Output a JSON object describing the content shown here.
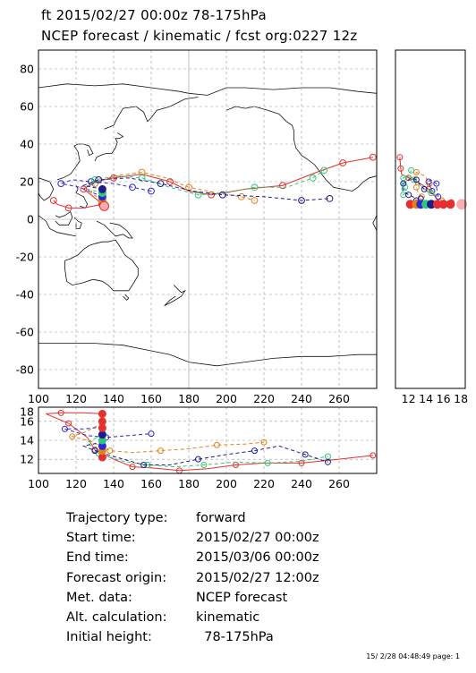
{
  "header": {
    "line1": "ft 2015/02/27 00:00z  78-175hPa",
    "line2": "NCEP forecast / kinematic / fcst org:0227 12z"
  },
  "info": [
    {
      "key": "Trajectory type:",
      "value": "forward"
    },
    {
      "key": "Start time:",
      "value": "2015/02/27 00:00z"
    },
    {
      "key": "End time:",
      "value": "2015/03/06 00:00z"
    },
    {
      "key": "Forecast origin:",
      "value": "2015/02/27 12:00z"
    },
    {
      "key": "Met. data:",
      "value": "NCEP forecast"
    },
    {
      "key": "Alt. calculation:",
      "value": "kinematic"
    },
    {
      "key": "Initial height:",
      "value": "  78-175hPa"
    }
  ],
  "footer": "15/ 2/28 04:48:49 page: 1",
  "colors": {
    "red": "#e53030",
    "orange": "#e8801a",
    "blue": "#2a2ad0",
    "green": "#30c878",
    "navy": "#1c1c8c",
    "grid": "#999999"
  },
  "chart_data": [
    {
      "type": "line",
      "panel": "map",
      "xlim": [
        100,
        280
      ],
      "ylim": [
        -90,
        90
      ],
      "xticks": [
        100,
        120,
        140,
        160,
        180,
        200,
        220,
        240,
        260
      ],
      "yticks": [
        80,
        60,
        40,
        20,
        0,
        -20,
        -40,
        -60,
        -80
      ],
      "grid": true,
      "series": [
        {
          "color": "red",
          "dash": false,
          "points": [
            [
              134,
              8
            ],
            [
              128,
              13
            ],
            [
              124,
              16
            ],
            [
              130,
              20
            ],
            [
              140,
              22
            ],
            [
              155,
              24
            ],
            [
              170,
              20
            ],
            [
              180,
              15
            ],
            [
              192,
              13
            ],
            [
              210,
              16
            ],
            [
              230,
              18
            ],
            [
              248,
              25
            ],
            [
              262,
              30
            ],
            [
              278,
              33
            ]
          ]
        },
        {
          "color": "orange",
          "dash": true,
          "points": [
            [
              134,
              10
            ],
            [
              128,
              14
            ],
            [
              130,
              19
            ],
            [
              140,
              23
            ],
            [
              155,
              25
            ],
            [
              168,
              22
            ],
            [
              180,
              17
            ],
            [
              195,
              14
            ],
            [
              208,
              12
            ],
            [
              215,
              10
            ]
          ]
        },
        {
          "color": "blue",
          "dash": true,
          "points": [
            [
              134,
              12
            ],
            [
              122,
              17
            ],
            [
              112,
              19
            ],
            [
              118,
              21
            ],
            [
              128,
              20
            ],
            [
              140,
              19
            ],
            [
              150,
              17
            ],
            [
              160,
              15
            ]
          ]
        },
        {
          "color": "green",
          "dash": true,
          "points": [
            [
              134,
              14
            ],
            [
              126,
              16
            ],
            [
              130,
              21
            ],
            [
              142,
              23
            ],
            [
              155,
              22
            ],
            [
              170,
              17
            ],
            [
              185,
              13
            ],
            [
              200,
              14
            ],
            [
              215,
              17
            ],
            [
              232,
              17
            ],
            [
              246,
              22
            ],
            [
              252,
              26
            ]
          ]
        },
        {
          "color": "navy",
          "dash": true,
          "points": [
            [
              134,
              16
            ],
            [
              124,
              18
            ],
            [
              132,
              21
            ],
            [
              148,
              22
            ],
            [
              165,
              19
            ],
            [
              182,
              15
            ],
            [
              198,
              13
            ],
            [
              220,
              12
            ],
            [
              240,
              10
            ],
            [
              255,
              11
            ]
          ]
        },
        {
          "color": "red",
          "dash": false,
          "points": [
            [
              134,
              8
            ],
            [
              124,
              6
            ],
            [
              116,
              6
            ],
            [
              110,
              8
            ],
            [
              108,
              10
            ]
          ]
        }
      ]
    },
    {
      "type": "line",
      "panel": "height-vs-longitude",
      "xlim": [
        100,
        280
      ],
      "ylim": [
        10.5,
        17.5
      ],
      "xticks": [
        100,
        120,
        140,
        160,
        180,
        200,
        220,
        240,
        260
      ],
      "yticks": [
        18,
        16,
        14,
        12
      ],
      "grid": true,
      "series": [
        {
          "color": "red",
          "dash": false,
          "points": [
            [
              134,
              16.8
            ],
            [
              124,
              16.9
            ],
            [
              112,
              16.9
            ],
            [
              104,
              16.8
            ],
            [
              116,
              15.8
            ],
            [
              126,
              14.3
            ],
            [
              130,
              13.0
            ],
            [
              140,
              12.0
            ],
            [
              150,
              11.2
            ],
            [
              160,
              11.1
            ],
            [
              175,
              10.8
            ],
            [
              190,
              11.0
            ],
            [
              205,
              11.4
            ],
            [
              220,
              11.6
            ],
            [
              240,
              11.6
            ],
            [
              260,
              12.0
            ],
            [
              278,
              12.4
            ]
          ]
        },
        {
          "color": "orange",
          "dash": true,
          "points": [
            [
              134,
              15.8
            ],
            [
              124,
              14.8
            ],
            [
              118,
              14.4
            ],
            [
              128,
              13.9
            ],
            [
              138,
              12.9
            ],
            [
              150,
              12.7
            ],
            [
              165,
              12.9
            ],
            [
              180,
              13.1
            ],
            [
              195,
              13.5
            ],
            [
              210,
              13.6
            ],
            [
              220,
              13.8
            ]
          ]
        },
        {
          "color": "blue",
          "dash": true,
          "points": [
            [
              134,
              15.4
            ],
            [
              124,
              15.2
            ],
            [
              114,
              15.2
            ],
            [
              126,
              14.5
            ],
            [
              136,
              14.3
            ],
            [
              148,
              14.5
            ],
            [
              160,
              14.7
            ]
          ]
        },
        {
          "color": "green",
          "dash": true,
          "points": [
            [
              134,
              14.6
            ],
            [
              126,
              13.8
            ],
            [
              132,
              12.6
            ],
            [
              145,
              11.8
            ],
            [
              158,
              11.4
            ],
            [
              172,
              11.2
            ],
            [
              188,
              11.4
            ],
            [
              205,
              11.7
            ],
            [
              222,
              11.6
            ],
            [
              240,
              11.8
            ],
            [
              254,
              12.3
            ]
          ]
        },
        {
          "color": "navy",
          "dash": true,
          "points": [
            [
              134,
              13.8
            ],
            [
              124,
              13.4
            ],
            [
              130,
              12.9
            ],
            [
              140,
              12.3
            ],
            [
              156,
              11.4
            ],
            [
              170,
              11.4
            ],
            [
              185,
              12.0
            ],
            [
              200,
              12.5
            ],
            [
              215,
              12.9
            ],
            [
              228,
              13.4
            ],
            [
              242,
              12.5
            ],
            [
              254,
              11.7
            ]
          ]
        }
      ]
    },
    {
      "type": "line",
      "panel": "latitude-vs-height",
      "xticks": [
        12,
        14,
        16,
        18
      ],
      "xlim": [
        10.5,
        18.5
      ],
      "ylim": [
        -90,
        90
      ],
      "grid": false,
      "series": [
        {
          "color": "red",
          "dash": false,
          "points": [
            [
              16.8,
              8
            ],
            [
              16.9,
              8
            ],
            [
              16.9,
              9
            ],
            [
              15.8,
              8
            ],
            [
              14.3,
              16
            ],
            [
              13.0,
              20
            ],
            [
              12.0,
              22
            ],
            [
              11.2,
              24
            ],
            [
              11.1,
              27
            ],
            [
              11.0,
              33
            ]
          ]
        },
        {
          "color": "orange",
          "dash": true,
          "points": [
            [
              15.8,
              10
            ],
            [
              14.8,
              14
            ],
            [
              14.4,
              19
            ],
            [
              13.9,
              23
            ],
            [
              12.9,
              25
            ],
            [
              12.7,
              22
            ],
            [
              12.9,
              17
            ],
            [
              13.1,
              14
            ],
            [
              13.5,
              12
            ]
          ]
        },
        {
          "color": "blue",
          "dash": true,
          "points": [
            [
              15.4,
              12
            ],
            [
              15.2,
              17
            ],
            [
              15.2,
              19
            ],
            [
              14.5,
              21
            ],
            [
              14.3,
              20
            ],
            [
              14.5,
              17
            ],
            [
              14.7,
              15
            ]
          ]
        },
        {
          "color": "green",
          "dash": true,
          "points": [
            [
              14.6,
              14
            ],
            [
              13.8,
              16
            ],
            [
              12.6,
              21
            ],
            [
              11.8,
              23
            ],
            [
              11.4,
              22
            ],
            [
              11.2,
              17
            ],
            [
              11.4,
              13
            ],
            [
              11.7,
              14
            ],
            [
              11.6,
              17
            ],
            [
              11.8,
              22
            ],
            [
              12.3,
              26
            ]
          ]
        },
        {
          "color": "navy",
          "dash": true,
          "points": [
            [
              13.8,
              16
            ],
            [
              13.4,
              18
            ],
            [
              12.9,
              21
            ],
            [
              12.3,
              22
            ],
            [
              11.4,
              19
            ],
            [
              11.4,
              15
            ],
            [
              12.0,
              13
            ],
            [
              12.5,
              12
            ],
            [
              12.9,
              10
            ],
            [
              13.4,
              11
            ]
          ]
        }
      ],
      "start_markers": [
        {
          "color": "red",
          "value": 12.2
        },
        {
          "color": "orange",
          "value": 12.9
        },
        {
          "color": "blue",
          "value": 13.4
        },
        {
          "color": "green",
          "value": 14.0
        },
        {
          "color": "navy",
          "value": 14.6
        },
        {
          "color": "red",
          "value": 15.3
        },
        {
          "color": "red",
          "value": 16.0
        },
        {
          "color": "red",
          "value": 16.8
        }
      ]
    }
  ]
}
